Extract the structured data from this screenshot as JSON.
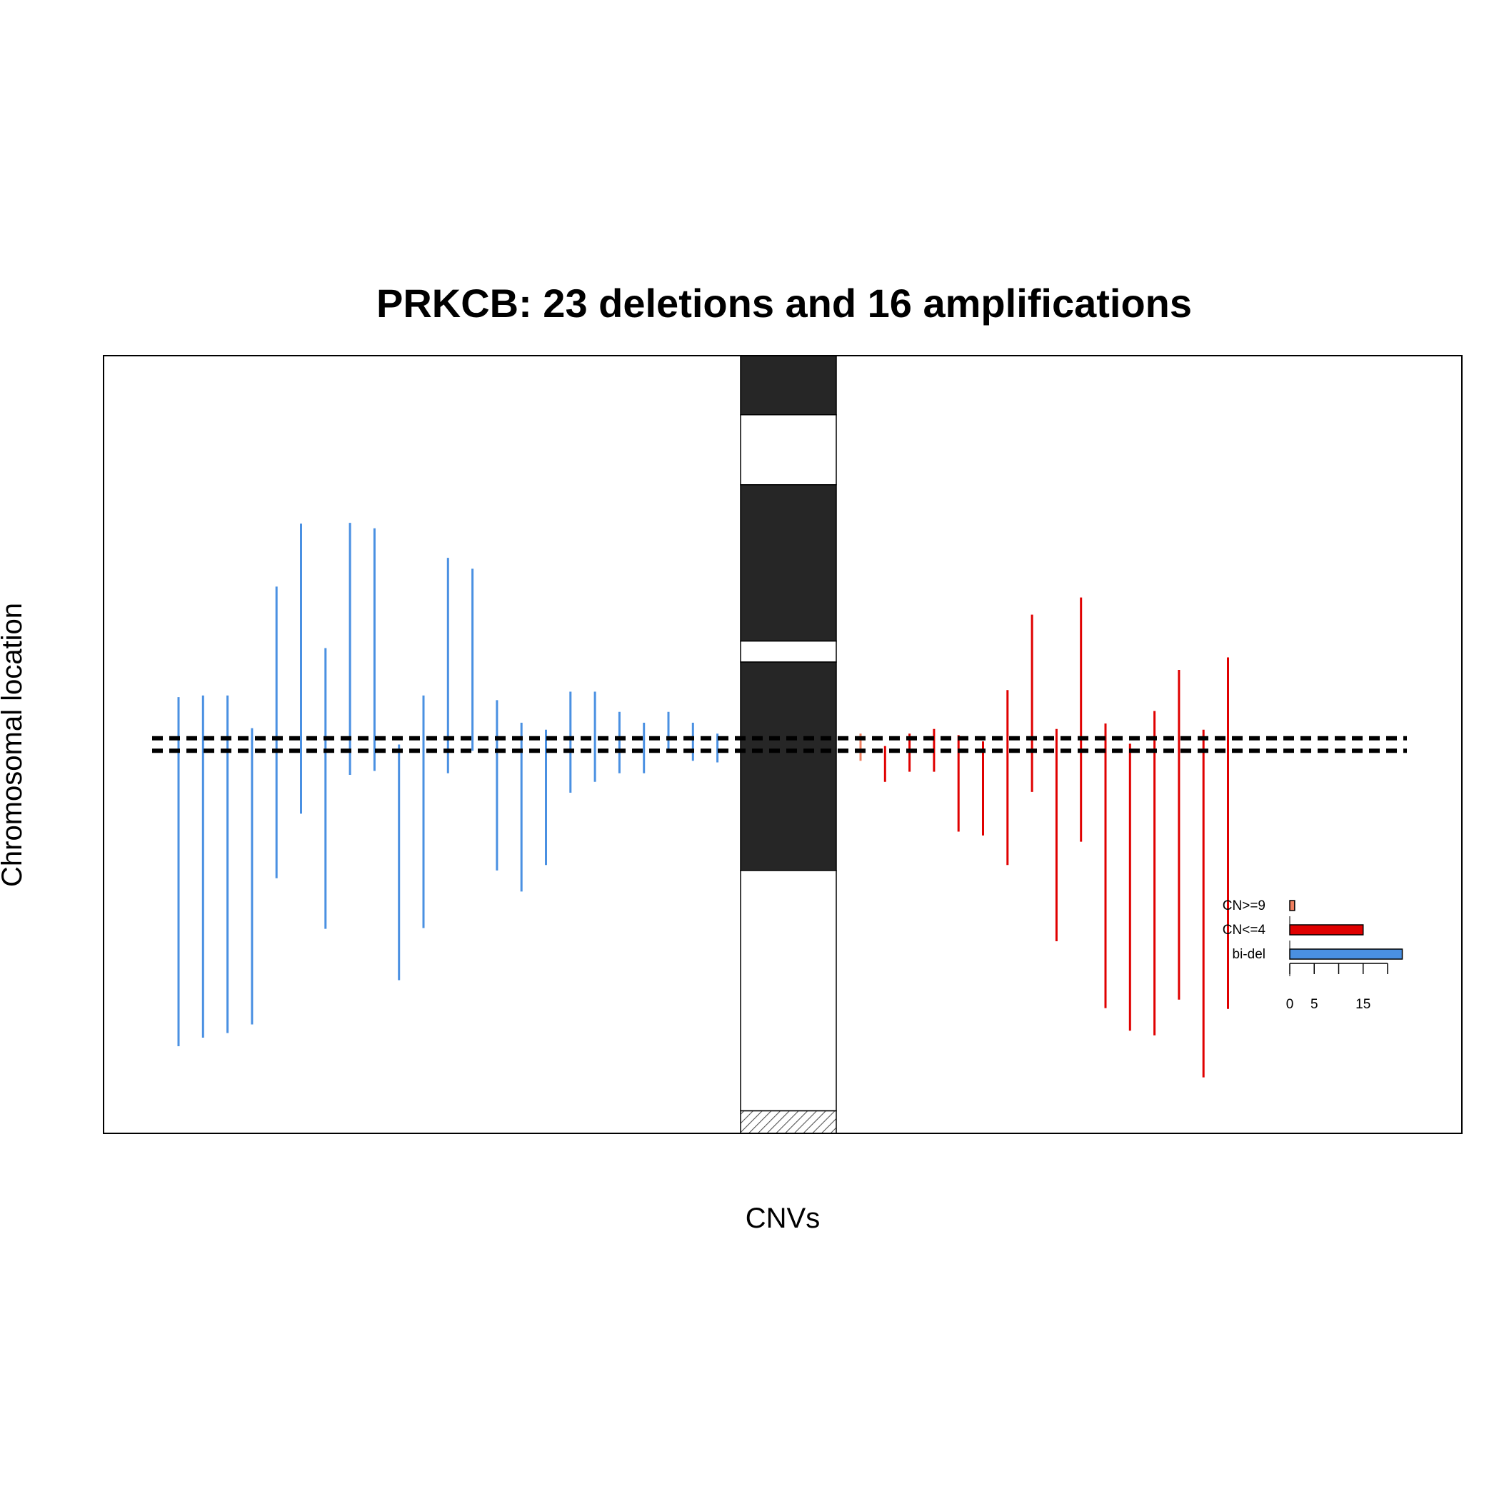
{
  "chart_data": {
    "type": "segment",
    "title": "PRKCB: 23 deletions and 16 amplifications",
    "xlabel": "CNVs",
    "ylabel": "Chromosomal location",
    "ylim": [
      0,
      100
    ],
    "gene_region": [
      49.2,
      50.8
    ],
    "colors": {
      "bi_del": "#4a90e2",
      "cn_le4": "#e00000",
      "cn_ge9": "#f08060",
      "band_dark": "#262626",
      "band_light": "#ffffff",
      "hatch": "#555555"
    },
    "ideogram_bands": [
      {
        "from": 100,
        "to": 92.4,
        "stain": "dark"
      },
      {
        "from": 92.4,
        "to": 83.4,
        "stain": "light"
      },
      {
        "from": 83.4,
        "to": 63.3,
        "stain": "dark"
      },
      {
        "from": 63.3,
        "to": 60.6,
        "stain": "light"
      },
      {
        "from": 60.6,
        "to": 33.8,
        "stain": "dark"
      },
      {
        "from": 33.8,
        "to": 2.9,
        "stain": "light"
      },
      {
        "from": 2.9,
        "to": 0,
        "stain": "hatch"
      }
    ],
    "deletions": [
      {
        "category": "bi-del",
        "top": 56.1,
        "bottom": 11.2
      },
      {
        "category": "bi-del",
        "top": 56.3,
        "bottom": 12.3
      },
      {
        "category": "bi-del",
        "top": 56.3,
        "bottom": 12.9
      },
      {
        "category": "bi-del",
        "top": 52.1,
        "bottom": 14.0
      },
      {
        "category": "bi-del",
        "top": 70.3,
        "bottom": 32.8
      },
      {
        "category": "bi-del",
        "top": 78.4,
        "bottom": 41.1
      },
      {
        "category": "bi-del",
        "top": 62.4,
        "bottom": 26.3
      },
      {
        "category": "bi-del",
        "top": 78.5,
        "bottom": 46.1
      },
      {
        "category": "bi-del",
        "top": 77.8,
        "bottom": 46.6
      },
      {
        "category": "bi-del",
        "top": 50.0,
        "bottom": 19.7
      },
      {
        "category": "bi-del",
        "top": 56.3,
        "bottom": 26.4
      },
      {
        "category": "bi-del",
        "top": 74.0,
        "bottom": 46.3
      },
      {
        "category": "bi-del",
        "top": 72.6,
        "bottom": 49.2
      },
      {
        "category": "bi-del",
        "top": 55.7,
        "bottom": 33.8
      },
      {
        "category": "bi-del",
        "top": 52.8,
        "bottom": 31.1
      },
      {
        "category": "bi-del",
        "top": 51.9,
        "bottom": 34.5
      },
      {
        "category": "bi-del",
        "top": 56.8,
        "bottom": 43.8
      },
      {
        "category": "bi-del",
        "top": 56.8,
        "bottom": 45.2
      },
      {
        "category": "bi-del",
        "top": 54.2,
        "bottom": 46.3
      },
      {
        "category": "bi-del",
        "top": 52.8,
        "bottom": 46.3
      },
      {
        "category": "bi-del",
        "top": 54.2,
        "bottom": 49.2
      },
      {
        "category": "bi-del",
        "top": 52.8,
        "bottom": 47.9
      },
      {
        "category": "bi-del",
        "top": 51.4,
        "bottom": 47.7
      }
    ],
    "amplifications": [
      {
        "category": "CN>=9",
        "top": 51.4,
        "bottom": 47.9
      },
      {
        "category": "CN<=4",
        "top": 49.8,
        "bottom": 45.2
      },
      {
        "category": "CN<=4",
        "top": 51.4,
        "bottom": 46.5
      },
      {
        "category": "CN<=4",
        "top": 52.0,
        "bottom": 46.5
      },
      {
        "category": "CN<=4",
        "top": 51.2,
        "bottom": 38.8
      },
      {
        "category": "CN<=4",
        "top": 50.4,
        "bottom": 38.3
      },
      {
        "category": "CN<=4",
        "top": 57.0,
        "bottom": 34.5
      },
      {
        "category": "CN<=4",
        "top": 66.7,
        "bottom": 43.9
      },
      {
        "category": "CN<=4",
        "top": 52.0,
        "bottom": 24.7
      },
      {
        "category": "CN<=4",
        "top": 68.9,
        "bottom": 37.5
      },
      {
        "category": "CN<=4",
        "top": 52.7,
        "bottom": 16.1
      },
      {
        "category": "CN<=4",
        "top": 50.1,
        "bottom": 13.2
      },
      {
        "category": "CN<=4",
        "top": 54.3,
        "bottom": 12.6
      },
      {
        "category": "CN<=4",
        "top": 59.6,
        "bottom": 17.2
      },
      {
        "category": "CN<=4",
        "top": 51.9,
        "bottom": 7.2
      },
      {
        "category": "CN<=4",
        "top": 61.2,
        "bottom": 16.0
      }
    ],
    "legend": {
      "position": "bottom-right",
      "categories": [
        "CN>=9",
        "CN<=4",
        "bi-del"
      ],
      "counts": [
        1,
        15,
        23
      ],
      "xlim": [
        0,
        20
      ],
      "ticks": [
        0,
        5,
        10,
        15,
        20
      ],
      "tick_labels": [
        "0",
        "5",
        "",
        "15",
        ""
      ]
    }
  }
}
